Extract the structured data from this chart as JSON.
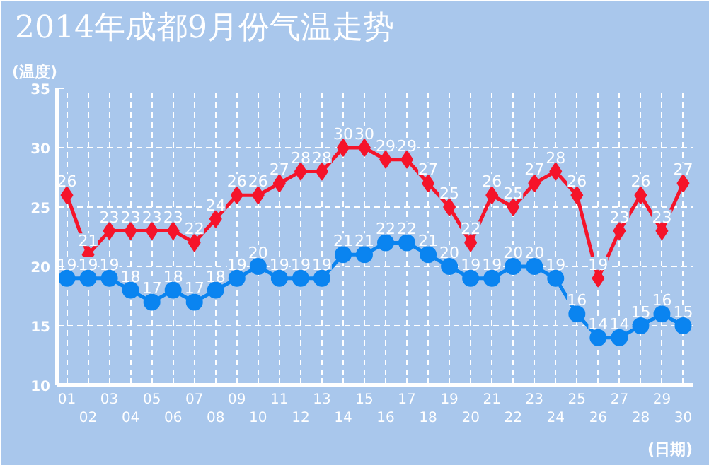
{
  "chart_data": {
    "type": "line",
    "title": "2014年成都9月份气温走势",
    "ylabel": "(温度)",
    "xlabel": "(日期)",
    "categories": [
      "01",
      "02",
      "03",
      "04",
      "05",
      "06",
      "07",
      "08",
      "09",
      "10",
      "11",
      "12",
      "13",
      "14",
      "15",
      "16",
      "17",
      "18",
      "19",
      "20",
      "21",
      "22",
      "23",
      "24",
      "25",
      "26",
      "27",
      "28",
      "29",
      "30"
    ],
    "series": [
      {
        "color": "#f5142a",
        "marker": "diamond",
        "values": [
          26,
          21,
          23,
          23,
          23,
          23,
          22,
          24,
          26,
          26,
          27,
          28,
          28,
          30,
          30,
          29,
          29,
          27,
          25,
          22,
          26,
          25,
          27,
          28,
          26,
          19,
          23,
          26,
          23,
          27
        ]
      },
      {
        "color": "#0a84f0",
        "marker": "circle",
        "values": [
          19,
          19,
          19,
          18,
          17,
          18,
          17,
          18,
          19,
          20,
          19,
          19,
          19,
          21,
          21,
          22,
          22,
          21,
          20,
          19,
          19,
          20,
          20,
          19,
          16,
          14,
          14,
          15,
          16,
          15
        ]
      }
    ],
    "ylim": [
      10,
      35
    ],
    "yticks": [
      10,
      15,
      20,
      25,
      30,
      35
    ],
    "grid": true,
    "data_labels": true
  }
}
